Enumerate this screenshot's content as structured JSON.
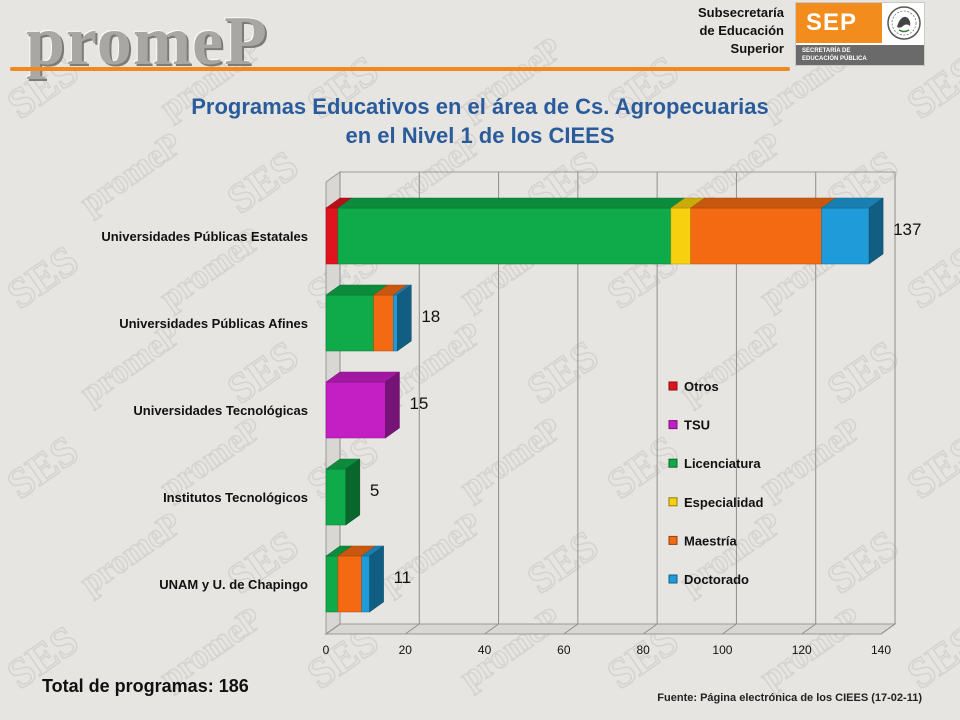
{
  "header": {
    "logo_text": "promeP",
    "subsecretaria_lines": [
      "Subsecretaría",
      "de Educación",
      "Superior"
    ],
    "sep_logo": {
      "text": "SEP",
      "dark_band_lines": [
        "SECRETARÍA DE",
        "EDUCACIÓN PÚBLICA"
      ],
      "icon": "mexican-eagle-seal-icon"
    },
    "watermark_words": [
      "SES",
      "promeP"
    ]
  },
  "title_lines": [
    "Programas Educativos en el área de Cs. Agropecuarias",
    "en el Nivel 1 de los CIEES"
  ],
  "chart_data": {
    "type": "bar",
    "orientation": "horizontal",
    "stacked": true,
    "style": "3d",
    "categories": [
      "Universidades Públicas Estatales",
      "Universidades Públicas Afines",
      "Universidades Tecnológicas",
      "Institutos Tecnológicos",
      "UNAM y U. de Chapingo"
    ],
    "series": [
      {
        "name": "Otros",
        "color": "#e0141e",
        "values": [
          3,
          0,
          0,
          0,
          0
        ]
      },
      {
        "name": "TSU",
        "color": "#c41fc4",
        "values": [
          0,
          0,
          15,
          0,
          0
        ]
      },
      {
        "name": "Licenciatura",
        "color": "#0faa4a",
        "values": [
          84,
          12,
          0,
          5,
          3
        ]
      },
      {
        "name": "Especialidad",
        "color": "#f7d10f",
        "values": [
          5,
          0,
          0,
          0,
          0
        ]
      },
      {
        "name": "Maestría",
        "color": "#f46a12",
        "values": [
          33,
          5,
          0,
          0,
          6
        ]
      },
      {
        "name": "Doctorado",
        "color": "#1e9bd8",
        "values": [
          12,
          1,
          0,
          0,
          2
        ]
      }
    ],
    "totals": [
      137,
      18,
      15,
      5,
      11
    ],
    "xlim": [
      0,
      140
    ],
    "xticks": [
      0,
      20,
      40,
      60,
      80,
      100,
      120,
      140
    ],
    "grid": true,
    "legend_position": "right-center"
  },
  "footer": {
    "total_label": "Total de programas: 186",
    "source": "Fuente: Página electrónica de los CIEES (17-02-11)"
  }
}
